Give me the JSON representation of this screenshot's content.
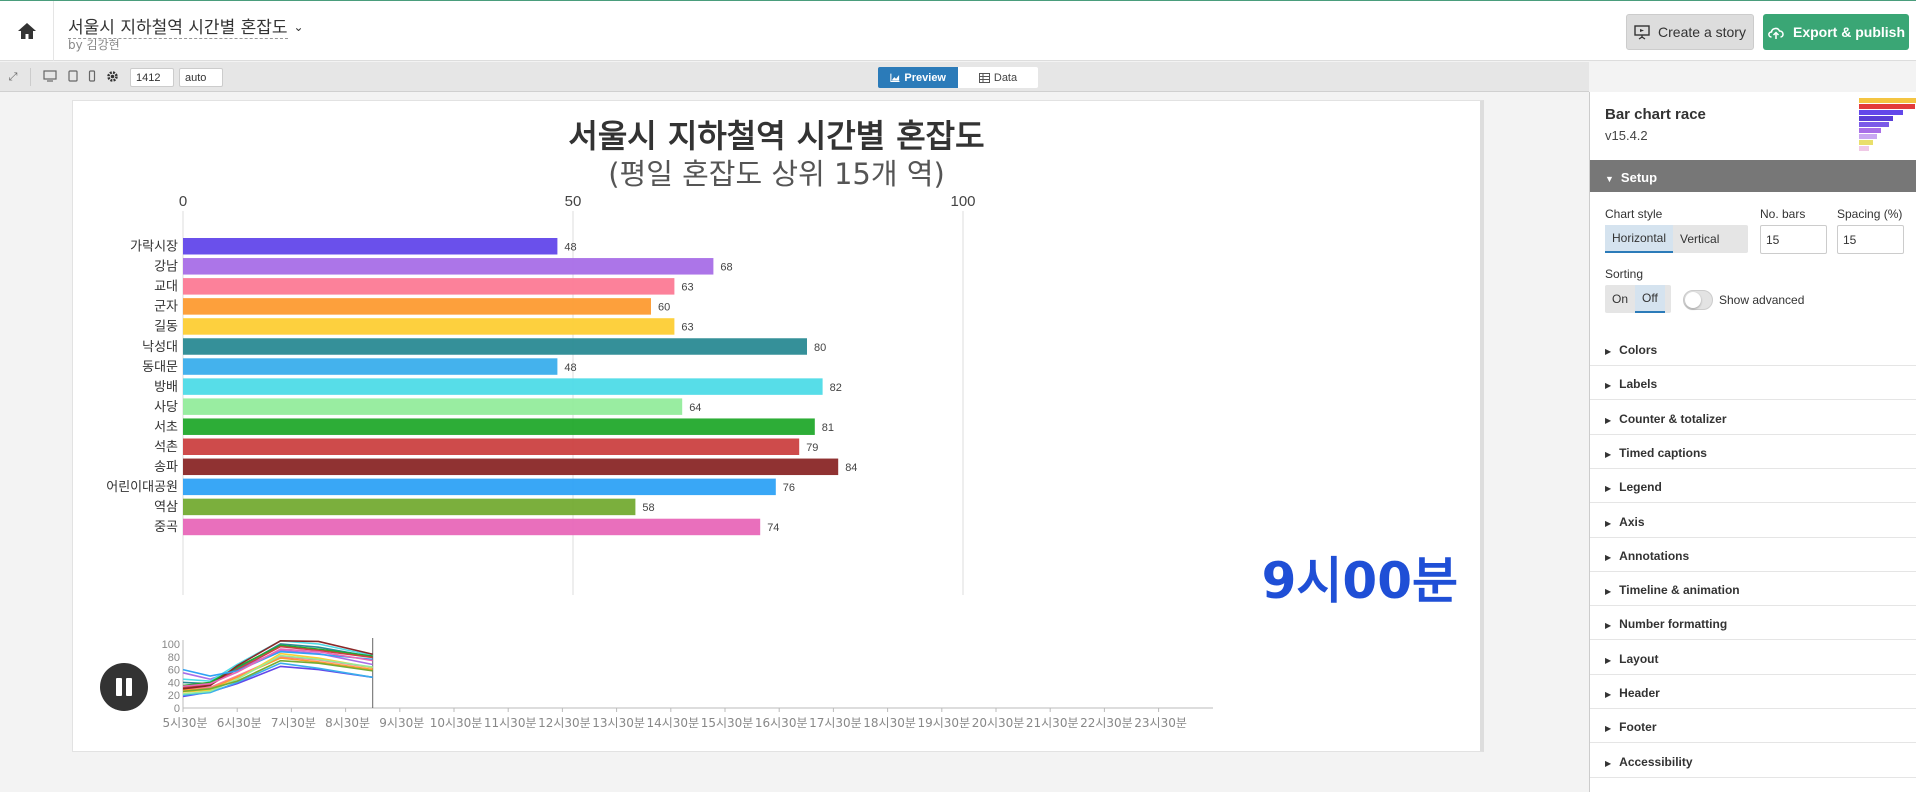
{
  "header": {
    "title": "서울시 지하철역 시간별 혼잡도",
    "author": "by 김강현",
    "create_story": "Create a story",
    "export_publish": "Export & publish"
  },
  "toolbar": {
    "width_value": "1412",
    "height_value": "auto",
    "preview_label": "Preview",
    "data_label": "Data"
  },
  "chart_data": {
    "type": "bar",
    "title": "서울시 지하철역 시간별 혼잡도",
    "subtitle": "(평일 혼잡도 상위 15개 역)",
    "axis_ticks": [
      0,
      50,
      100
    ],
    "xlim": [
      0,
      100
    ],
    "categories": [
      "가락시장",
      "강남",
      "교대",
      "군자",
      "길동",
      "낙성대",
      "동대문",
      "방배",
      "사당",
      "서초",
      "석촌",
      "송파",
      "어린이대공원",
      "역삼",
      "중곡"
    ],
    "values": [
      48,
      68,
      63,
      60,
      63,
      80,
      48,
      82,
      64,
      81,
      79,
      84,
      76,
      58,
      74
    ],
    "colors": [
      "#6247ea",
      "#a86ee7",
      "#fc7a95",
      "#fd9b31",
      "#fdcd34",
      "#2a8a93",
      "#3aaeec",
      "#4edbe7",
      "#94ec9c",
      "#22a92c",
      "#cb4141",
      "#8a2727",
      "#2ea2f5",
      "#74ab33",
      "#e867b8"
    ],
    "counter": "9시00분",
    "timeline": {
      "ticks": [
        "5시30분",
        "6시30분",
        "7시30분",
        "8시30분",
        "9시30분",
        "10시30분",
        "11시30분",
        "12시30분",
        "13시30분",
        "14시30분",
        "15시30분",
        "16시30분",
        "17시30분",
        "18시30분",
        "19시30분",
        "20시30분",
        "21시30분",
        "22시30분",
        "23시30분"
      ],
      "y_ticks": [
        0,
        20,
        40,
        60,
        80,
        100
      ]
    }
  },
  "sidebar": {
    "template": "Bar chart race",
    "version": "v15.4.2",
    "setup": "Setup",
    "chart_style_label": "Chart style",
    "horizontal": "Horizontal",
    "vertical": "Vertical",
    "nobars_label": "No. bars",
    "nobars_value": "15",
    "spacing_label": "Spacing (%)",
    "spacing_value": "15",
    "sorting_label": "Sorting",
    "sort_on": "On",
    "sort_off": "Off",
    "show_advanced": "Show advanced",
    "sections": [
      "Colors",
      "Labels",
      "Counter & totalizer",
      "Timed captions",
      "Legend",
      "Axis",
      "Annotations",
      "Timeline & animation",
      "Number formatting",
      "Layout",
      "Header",
      "Footer",
      "Accessibility"
    ]
  }
}
